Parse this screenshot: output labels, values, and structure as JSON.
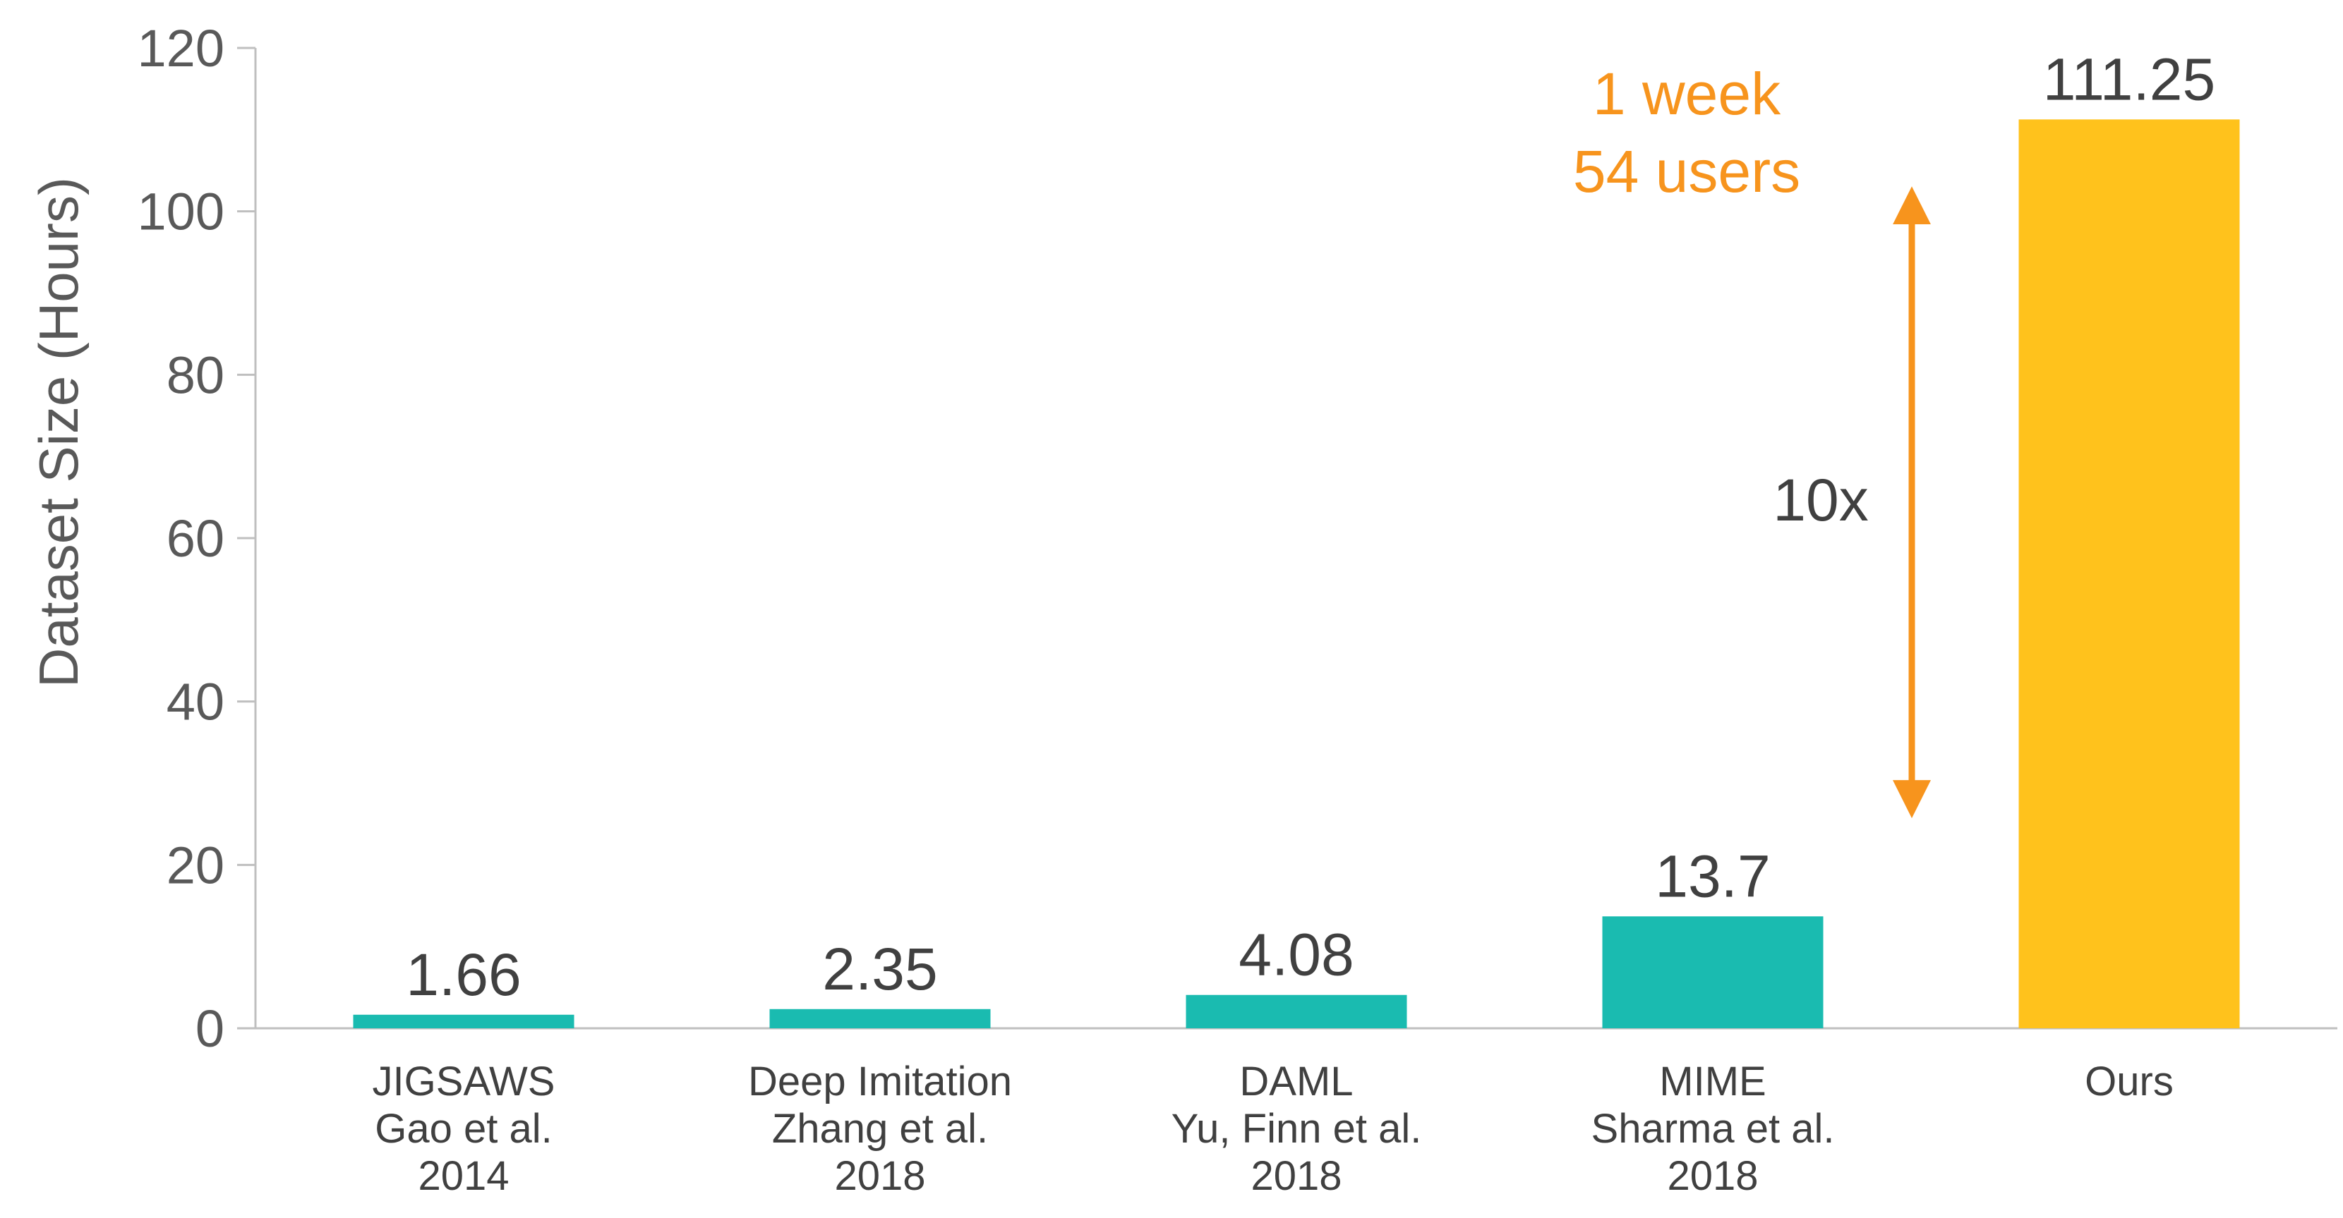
{
  "chart_data": {
    "type": "bar",
    "categories": [
      [
        "JIGSAWS",
        "Gao et al.",
        "2014"
      ],
      [
        "Deep Imitation",
        "Zhang et al.",
        "2018"
      ],
      [
        "DAML",
        "Yu, Finn et al.",
        "2018"
      ],
      [
        "MIME",
        "Sharma et al.",
        "2018"
      ],
      [
        "Ours"
      ]
    ],
    "values": [
      1.66,
      2.35,
      4.08,
      13.7,
      111.25
    ],
    "value_labels": [
      "1.66",
      "2.35",
      "4.08",
      "13.7",
      "111.25"
    ],
    "bar_colors": [
      "#1ABBB0",
      "#1ABBB0",
      "#1ABBB0",
      "#1ABBB0",
      "#FFC21C"
    ],
    "ylabel": "Dataset Size (Hours)",
    "ylim": [
      0,
      120
    ],
    "yticks": [
      0,
      20,
      40,
      60,
      80,
      100,
      120
    ],
    "grid": false,
    "annotations": {
      "highlight_line1": "1 week",
      "highlight_line2": "54 users",
      "highlight_color": "#F7941D",
      "factor_label": "10x",
      "arrow_from_value": 13.7,
      "arrow_to_value": 111.25
    }
  }
}
